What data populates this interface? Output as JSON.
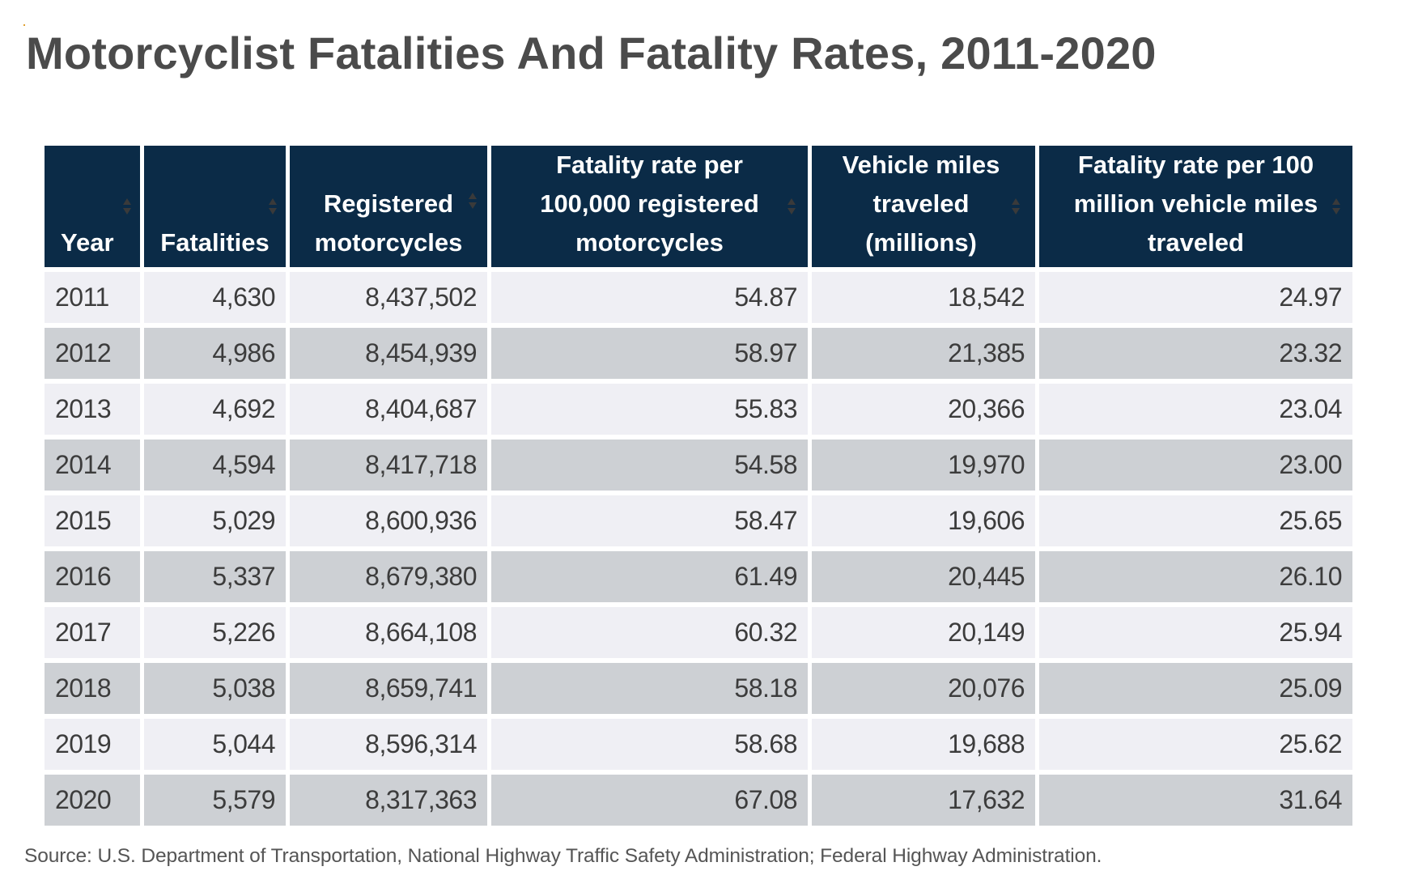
{
  "title": "Motorcyclist Fatalities And Fatality Rates, 2011-2020",
  "table": {
    "columns": [
      {
        "key": "year",
        "label": "Year",
        "sortable": true
      },
      {
        "key": "fatalities",
        "label": "Fatalities",
        "sortable": true
      },
      {
        "key": "registered",
        "label": "Registered motorcycles",
        "sortable": true
      },
      {
        "key": "rate_registered",
        "label": "Fatality rate per 100,000 registered motorcycles",
        "sortable": true
      },
      {
        "key": "vmt",
        "label": "Vehicle miles traveled (millions)",
        "sortable": true
      },
      {
        "key": "rate_vmt",
        "label": "Fatality rate per 100 million vehicle miles traveled",
        "sortable": true
      }
    ],
    "rows": [
      {
        "year": "2011",
        "fatalities": "4,630",
        "registered": "8,437,502",
        "rate_registered": "54.87",
        "vmt": "18,542",
        "rate_vmt": "24.97"
      },
      {
        "year": "2012",
        "fatalities": "4,986",
        "registered": "8,454,939",
        "rate_registered": "58.97",
        "vmt": "21,385",
        "rate_vmt": "23.32"
      },
      {
        "year": "2013",
        "fatalities": "4,692",
        "registered": "8,404,687",
        "rate_registered": "55.83",
        "vmt": "20,366",
        "rate_vmt": "23.04"
      },
      {
        "year": "2014",
        "fatalities": "4,594",
        "registered": "8,417,718",
        "rate_registered": "54.58",
        "vmt": "19,970",
        "rate_vmt": "23.00"
      },
      {
        "year": "2015",
        "fatalities": "5,029",
        "registered": "8,600,936",
        "rate_registered": "58.47",
        "vmt": "19,606",
        "rate_vmt": "25.65"
      },
      {
        "year": "2016",
        "fatalities": "5,337",
        "registered": "8,679,380",
        "rate_registered": "61.49",
        "vmt": "20,445",
        "rate_vmt": "26.10"
      },
      {
        "year": "2017",
        "fatalities": "5,226",
        "registered": "8,664,108",
        "rate_registered": "60.32",
        "vmt": "20,149",
        "rate_vmt": "25.94"
      },
      {
        "year": "2018",
        "fatalities": "5,038",
        "registered": "8,659,741",
        "rate_registered": "58.18",
        "vmt": "20,076",
        "rate_vmt": "25.09"
      },
      {
        "year": "2019",
        "fatalities": "5,044",
        "registered": "8,596,314",
        "rate_registered": "58.68",
        "vmt": "19,688",
        "rate_vmt": "25.62"
      },
      {
        "year": "2020",
        "fatalities": "5,579",
        "registered": "8,317,363",
        "rate_registered": "67.08",
        "vmt": "17,632",
        "rate_vmt": "31.64"
      }
    ]
  },
  "source": "Source: U.S. Department of Transportation, National Highway Traffic Safety Administration; Federal Highway Administration.",
  "colors": {
    "header_bg": "#0b2b47",
    "header_text": "#ffffff",
    "row_light": "#efeff4",
    "row_dark": "#cdd0d4",
    "title_text": "#4b4b4b"
  },
  "icons": {
    "sort": "sort-up-down-icon"
  }
}
